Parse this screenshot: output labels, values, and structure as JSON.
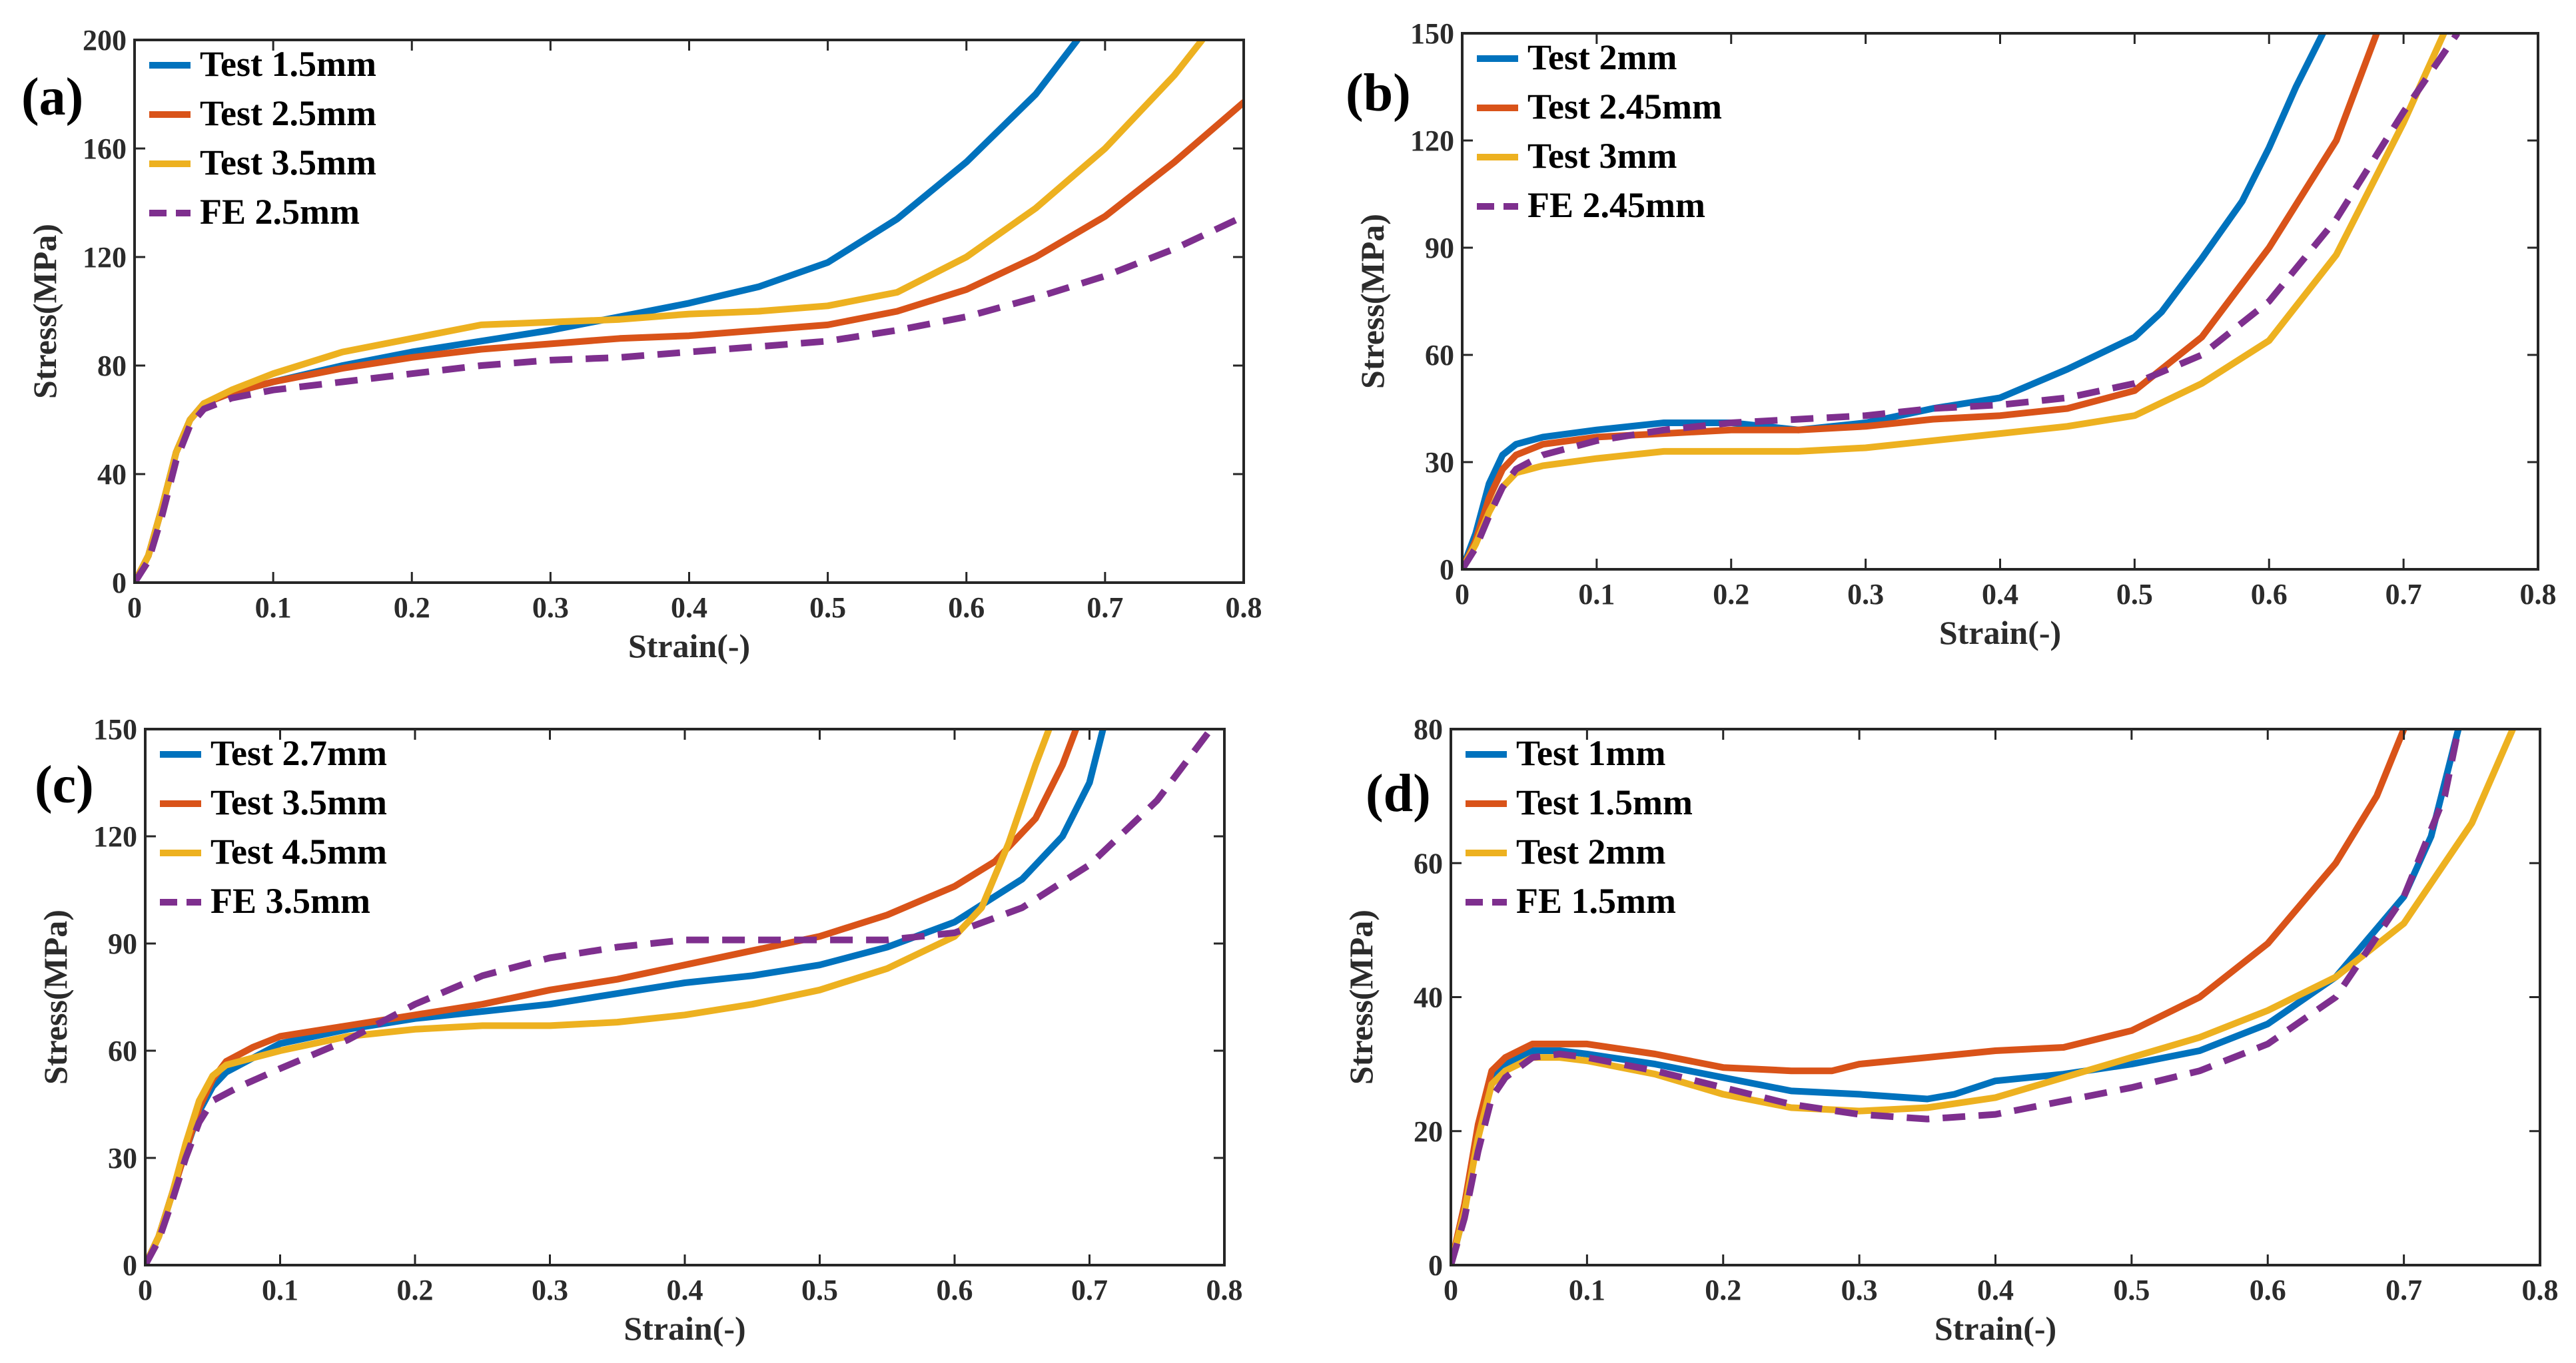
{
  "chart_data": [
    {
      "type": "line",
      "panel": "(a)",
      "xlabel": "Strain(-)",
      "ylabel": "Stress(MPa)",
      "xlim": [
        0,
        0.8
      ],
      "ylim": [
        0,
        200
      ],
      "xticks": [
        0,
        0.1,
        0.2,
        0.3,
        0.4,
        0.5,
        0.6,
        0.7,
        0.8
      ],
      "xtick_labels": [
        "0",
        "0.1",
        "0.2",
        "0.3",
        "0.4",
        "0.5",
        "0.6",
        "0.7",
        "0.8"
      ],
      "yticks": [
        0,
        40,
        80,
        120,
        160,
        200
      ],
      "ytick_labels": [
        "0",
        "40",
        "80",
        "120",
        "160",
        "200"
      ],
      "legend_position": "top-left",
      "series": [
        {
          "name": "Test 1.5mm",
          "color": "#0072BD",
          "dash": "solid",
          "x": [
            0,
            0.01,
            0.02,
            0.03,
            0.04,
            0.05,
            0.07,
            0.1,
            0.15,
            0.2,
            0.25,
            0.3,
            0.35,
            0.4,
            0.45,
            0.5,
            0.55,
            0.6,
            0.65,
            0.68
          ],
          "y": [
            0,
            10,
            28,
            48,
            60,
            66,
            70,
            74,
            80,
            85,
            89,
            93,
            98,
            103,
            109,
            118,
            134,
            155,
            180,
            200
          ]
        },
        {
          "name": "Test 2.5mm",
          "color": "#D95319",
          "dash": "solid",
          "x": [
            0,
            0.01,
            0.02,
            0.03,
            0.04,
            0.05,
            0.07,
            0.1,
            0.15,
            0.2,
            0.25,
            0.3,
            0.35,
            0.4,
            0.45,
            0.5,
            0.55,
            0.6,
            0.65,
            0.7,
            0.75,
            0.8
          ],
          "y": [
            0,
            10,
            28,
            48,
            60,
            66,
            70,
            74,
            79,
            83,
            86,
            88,
            90,
            91,
            93,
            95,
            100,
            108,
            120,
            135,
            155,
            177
          ]
        },
        {
          "name": "Test 3.5mm",
          "color": "#EDB120",
          "dash": "solid",
          "x": [
            0,
            0.01,
            0.02,
            0.03,
            0.04,
            0.05,
            0.07,
            0.1,
            0.15,
            0.2,
            0.25,
            0.3,
            0.35,
            0.4,
            0.45,
            0.5,
            0.55,
            0.6,
            0.65,
            0.7,
            0.75,
            0.77
          ],
          "y": [
            0,
            10,
            28,
            48,
            60,
            66,
            71,
            77,
            85,
            90,
            95,
            96,
            97,
            99,
            100,
            102,
            107,
            120,
            138,
            160,
            187,
            200
          ]
        },
        {
          "name": "FE 2.5mm",
          "color": "#7E2F8E",
          "dash": "dashed",
          "x": [
            0,
            0.01,
            0.02,
            0.03,
            0.04,
            0.05,
            0.07,
            0.1,
            0.15,
            0.2,
            0.25,
            0.3,
            0.35,
            0.4,
            0.45,
            0.5,
            0.55,
            0.6,
            0.65,
            0.7,
            0.75,
            0.8
          ],
          "y": [
            0,
            8,
            25,
            45,
            58,
            64,
            68,
            71,
            74,
            77,
            80,
            82,
            83,
            85,
            87,
            89,
            93,
            98,
            105,
            113,
            123,
            135
          ]
        }
      ]
    },
    {
      "type": "line",
      "panel": "(b)",
      "xlabel": "Strain(-)",
      "ylabel": "Stress(MPa)",
      "xlim": [
        0,
        0.8
      ],
      "ylim": [
        0,
        150
      ],
      "xticks": [
        0,
        0.1,
        0.2,
        0.3,
        0.4,
        0.5,
        0.6,
        0.7,
        0.8
      ],
      "xtick_labels": [
        "0",
        "0.1",
        "0.2",
        "0.3",
        "0.4",
        "0.5",
        "0.6",
        "0.7",
        "0.8"
      ],
      "yticks": [
        0,
        30,
        60,
        90,
        120,
        150
      ],
      "ytick_labels": [
        "0",
        "30",
        "60",
        "90",
        "120",
        "150"
      ],
      "legend_position": "top-left",
      "series": [
        {
          "name": "Test 2mm",
          "color": "#0072BD",
          "dash": "solid",
          "x": [
            0,
            0.01,
            0.02,
            0.03,
            0.04,
            0.06,
            0.1,
            0.15,
            0.2,
            0.25,
            0.3,
            0.35,
            0.4,
            0.45,
            0.5,
            0.52,
            0.55,
            0.58,
            0.6,
            0.62,
            0.64
          ],
          "y": [
            0,
            10,
            24,
            32,
            35,
            37,
            39,
            41,
            41,
            39,
            41,
            45,
            48,
            56,
            65,
            72,
            87,
            103,
            118,
            135,
            150
          ]
        },
        {
          "name": "Test 2.45mm",
          "color": "#D95319",
          "dash": "solid",
          "x": [
            0,
            0.01,
            0.02,
            0.03,
            0.04,
            0.06,
            0.1,
            0.15,
            0.2,
            0.25,
            0.3,
            0.35,
            0.4,
            0.45,
            0.5,
            0.55,
            0.6,
            0.65,
            0.68
          ],
          "y": [
            0,
            8,
            20,
            28,
            32,
            35,
            37,
            38,
            39,
            39,
            40,
            42,
            43,
            45,
            50,
            65,
            90,
            120,
            150
          ]
        },
        {
          "name": "Test 3mm",
          "color": "#EDB120",
          "dash": "solid",
          "x": [
            0,
            0.01,
            0.02,
            0.03,
            0.04,
            0.06,
            0.1,
            0.15,
            0.2,
            0.25,
            0.3,
            0.35,
            0.4,
            0.45,
            0.5,
            0.55,
            0.6,
            0.65,
            0.7,
            0.73
          ],
          "y": [
            0,
            7,
            16,
            23,
            27,
            29,
            31,
            33,
            33,
            33,
            34,
            36,
            38,
            40,
            43,
            52,
            64,
            88,
            125,
            150
          ]
        },
        {
          "name": "FE 2.45mm",
          "color": "#7E2F8E",
          "dash": "dashed",
          "x": [
            0,
            0.01,
            0.02,
            0.03,
            0.04,
            0.06,
            0.1,
            0.15,
            0.2,
            0.25,
            0.3,
            0.35,
            0.4,
            0.45,
            0.5,
            0.55,
            0.6,
            0.65,
            0.7,
            0.74
          ],
          "y": [
            0,
            6,
            15,
            23,
            28,
            32,
            36,
            39,
            41,
            42,
            43,
            45,
            46,
            48,
            52,
            60,
            75,
            98,
            128,
            150
          ]
        }
      ]
    },
    {
      "type": "line",
      "panel": "(c)",
      "xlabel": "Strain(-)",
      "ylabel": "Stress(MPa)",
      "xlim": [
        0,
        0.8
      ],
      "ylim": [
        0,
        150
      ],
      "xticks": [
        0,
        0.1,
        0.2,
        0.3,
        0.4,
        0.5,
        0.6,
        0.7,
        0.8
      ],
      "xtick_labels": [
        "0",
        "0.1",
        "0.2",
        "0.3",
        "0.4",
        "0.5",
        "0.6",
        "0.7",
        "0.8"
      ],
      "yticks": [
        0,
        30,
        60,
        90,
        120,
        150
      ],
      "ytick_labels": [
        "0",
        "30",
        "60",
        "90",
        "120",
        "150"
      ],
      "legend_position": "top-left",
      "series": [
        {
          "name": "Test 2.7mm",
          "color": "#0072BD",
          "dash": "solid",
          "x": [
            0,
            0.01,
            0.02,
            0.03,
            0.04,
            0.05,
            0.06,
            0.08,
            0.1,
            0.15,
            0.2,
            0.25,
            0.3,
            0.35,
            0.4,
            0.45,
            0.5,
            0.55,
            0.6,
            0.65,
            0.68,
            0.7,
            0.71
          ],
          "y": [
            0,
            8,
            20,
            32,
            43,
            50,
            54,
            58,
            62,
            66,
            69,
            71,
            73,
            76,
            79,
            81,
            84,
            89,
            96,
            108,
            120,
            135,
            150
          ]
        },
        {
          "name": "Test 3.5mm",
          "color": "#D95319",
          "dash": "solid",
          "x": [
            0,
            0.01,
            0.02,
            0.03,
            0.04,
            0.05,
            0.06,
            0.08,
            0.1,
            0.15,
            0.2,
            0.25,
            0.3,
            0.35,
            0.4,
            0.45,
            0.5,
            0.55,
            0.6,
            0.63,
            0.66,
            0.68,
            0.69
          ],
          "y": [
            0,
            8,
            20,
            32,
            44,
            52,
            57,
            61,
            64,
            67,
            70,
            73,
            77,
            80,
            84,
            88,
            92,
            98,
            106,
            113,
            125,
            140,
            150
          ]
        },
        {
          "name": "Test 4.5mm",
          "color": "#EDB120",
          "dash": "solid",
          "x": [
            0,
            0.01,
            0.02,
            0.03,
            0.04,
            0.05,
            0.06,
            0.08,
            0.1,
            0.15,
            0.2,
            0.25,
            0.3,
            0.35,
            0.4,
            0.45,
            0.5,
            0.55,
            0.6,
            0.62,
            0.64,
            0.66,
            0.67
          ],
          "y": [
            0,
            8,
            20,
            34,
            46,
            53,
            56,
            58,
            60,
            64,
            66,
            67,
            67,
            68,
            70,
            73,
            77,
            83,
            92,
            100,
            118,
            140,
            150
          ]
        },
        {
          "name": "FE 3.5mm",
          "color": "#7E2F8E",
          "dash": "dashed",
          "x": [
            0,
            0.01,
            0.02,
            0.03,
            0.04,
            0.05,
            0.07,
            0.1,
            0.15,
            0.2,
            0.25,
            0.3,
            0.35,
            0.4,
            0.45,
            0.5,
            0.55,
            0.6,
            0.65,
            0.7,
            0.75,
            0.79
          ],
          "y": [
            0,
            7,
            18,
            30,
            40,
            46,
            50,
            55,
            63,
            73,
            81,
            86,
            89,
            91,
            91,
            91,
            91,
            93,
            100,
            112,
            130,
            150
          ]
        }
      ]
    },
    {
      "type": "line",
      "panel": "(d)",
      "xlabel": "Strain(-)",
      "ylabel": "Stress(MPa)",
      "xlim": [
        0,
        0.8
      ],
      "ylim": [
        0,
        80
      ],
      "xticks": [
        0,
        0.1,
        0.2,
        0.3,
        0.4,
        0.5,
        0.6,
        0.7,
        0.8
      ],
      "xtick_labels": [
        "0",
        "0.1",
        "0.2",
        "0.3",
        "0.4",
        "0.5",
        "0.6",
        "0.7",
        "0.8"
      ],
      "yticks": [
        0,
        20,
        40,
        60,
        80
      ],
      "ytick_labels": [
        "0",
        "20",
        "40",
        "60",
        "80"
      ],
      "legend_position": "top-left",
      "series": [
        {
          "name": "Test 1mm",
          "color": "#0072BD",
          "dash": "solid",
          "x": [
            0,
            0.01,
            0.02,
            0.03,
            0.04,
            0.06,
            0.08,
            0.1,
            0.15,
            0.2,
            0.25,
            0.3,
            0.35,
            0.37,
            0.4,
            0.45,
            0.5,
            0.55,
            0.6,
            0.65,
            0.7,
            0.72,
            0.74
          ],
          "y": [
            0,
            8,
            20,
            28,
            30,
            32,
            32,
            31.5,
            30,
            28,
            26,
            25.5,
            24.8,
            25.5,
            27.5,
            28.5,
            30,
            32,
            36,
            43,
            55,
            64,
            80
          ]
        },
        {
          "name": "Test 1.5mm",
          "color": "#D95319",
          "dash": "solid",
          "x": [
            0,
            0.01,
            0.02,
            0.03,
            0.04,
            0.06,
            0.08,
            0.1,
            0.15,
            0.2,
            0.25,
            0.28,
            0.3,
            0.35,
            0.4,
            0.45,
            0.5,
            0.55,
            0.6,
            0.65,
            0.68,
            0.7
          ],
          "y": [
            0,
            9,
            21,
            29,
            31,
            33,
            33,
            33,
            31.5,
            29.5,
            29,
            29,
            30,
            31,
            32,
            32.5,
            35,
            40,
            48,
            60,
            70,
            80
          ]
        },
        {
          "name": "Test 2mm",
          "color": "#EDB120",
          "dash": "solid",
          "x": [
            0,
            0.01,
            0.02,
            0.03,
            0.04,
            0.06,
            0.08,
            0.1,
            0.15,
            0.2,
            0.25,
            0.3,
            0.35,
            0.4,
            0.45,
            0.5,
            0.55,
            0.6,
            0.65,
            0.7,
            0.75,
            0.78
          ],
          "y": [
            0,
            8,
            19,
            27,
            29,
            31,
            31,
            30.5,
            28.5,
            25.5,
            23.5,
            23,
            23.5,
            25,
            28,
            31,
            34,
            38,
            43,
            51,
            66,
            80
          ]
        },
        {
          "name": "FE 1.5mm",
          "color": "#7E2F8E",
          "dash": "dashed",
          "x": [
            0,
            0.01,
            0.02,
            0.03,
            0.04,
            0.06,
            0.08,
            0.1,
            0.15,
            0.2,
            0.25,
            0.3,
            0.35,
            0.4,
            0.45,
            0.5,
            0.55,
            0.6,
            0.65,
            0.7,
            0.73,
            0.74
          ],
          "y": [
            0,
            7,
            17,
            25,
            28,
            31,
            31.5,
            31,
            29,
            26.5,
            24,
            22.5,
            21.8,
            22.5,
            24.5,
            26.5,
            29,
            33,
            40,
            55,
            70,
            80
          ]
        }
      ]
    }
  ]
}
